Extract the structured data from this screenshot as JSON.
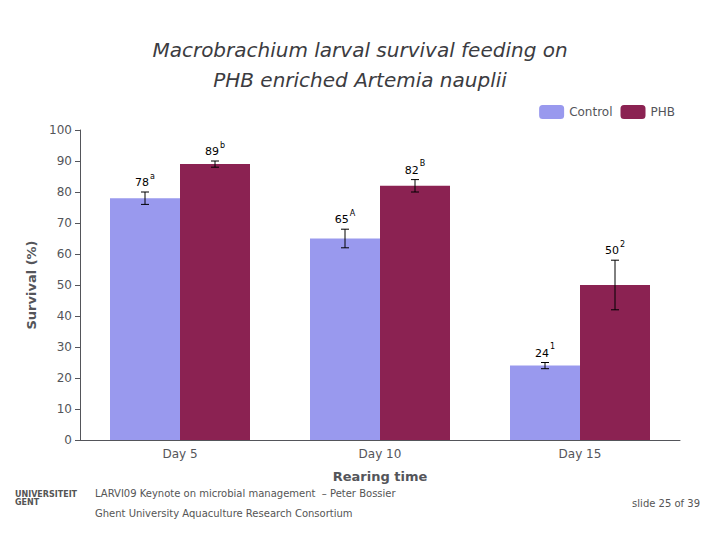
{
  "chart_data": {
    "type": "bar",
    "title": "Macrobrachium larval survival feeding on\nPHB enriched Artemia nauplii",
    "categories": [
      "Day 5",
      "Day 10",
      "Day 15"
    ],
    "series": [
      {
        "name": "Control",
        "color": "#9999EE",
        "values": [
          78,
          65,
          24
        ],
        "errors": [
          2,
          3,
          1
        ],
        "superscripts": [
          "a",
          "A",
          "1"
        ]
      },
      {
        "name": "PHB",
        "color": "#8B2252",
        "values": [
          89,
          82,
          50
        ],
        "errors": [
          1,
          2,
          8
        ],
        "superscripts": [
          "b",
          "B",
          "2"
        ]
      }
    ],
    "xlabel": "Rearing time",
    "ylabel": "Survival (%)",
    "ylim": [
      0,
      100
    ],
    "yticks": [
      0,
      10,
      20,
      30,
      40,
      50,
      60,
      70,
      80,
      90,
      100
    ],
    "grid": false,
    "legend": "upper right",
    "data_labels": true,
    "annotations": [
      "LARVI09 Keynote on microbial management  – Peter Bossier",
      "Ghent University Aquaculture Research Consortium",
      "slide 25 of 39",
      "UNIVERSITEIT\nGENT"
    ]
  }
}
